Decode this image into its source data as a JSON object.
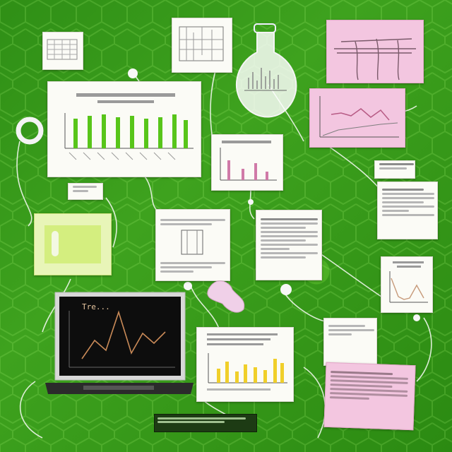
{
  "scene": {
    "palette": {
      "background": "#3ea21e",
      "paper": "#fbfbf6",
      "pink_paper": "#f3c6e0",
      "lime_panel": "#e8f5b8",
      "chart_green": "#58c51a",
      "chart_pink": "#d07aa8",
      "chart_yellow": "#f0cf2a",
      "laptop_line": "#c98a58"
    },
    "laptop": {
      "screen_title": "Tre..."
    }
  }
}
